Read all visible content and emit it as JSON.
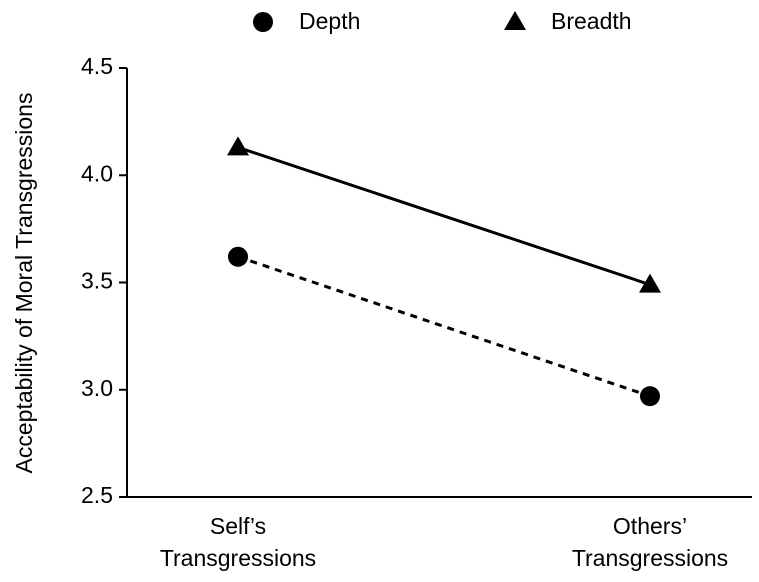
{
  "chart_data": {
    "type": "line",
    "y_label": "Acceptability of Moral Transgressions",
    "categories": [
      [
        "Self’s",
        "Transgressions"
      ],
      [
        "Others’",
        "Transgressions"
      ]
    ],
    "series": [
      {
        "name": "Depth",
        "color": "#000000",
        "marker": "circle",
        "linestyle": "dashed",
        "values": [
          3.62,
          2.97
        ]
      },
      {
        "name": "Breadth",
        "color": "#000000",
        "marker": "triangle",
        "linestyle": "solid",
        "values": [
          4.13,
          3.49
        ]
      }
    ],
    "ylim": [
      2.5,
      4.5
    ],
    "yticks": [
      2.5,
      {
        "value": 3,
        "label": "3.0"
      },
      3.5,
      {
        "value": 4,
        "label": "4.0"
      },
      4.5
    ],
    "legend": "top"
  }
}
